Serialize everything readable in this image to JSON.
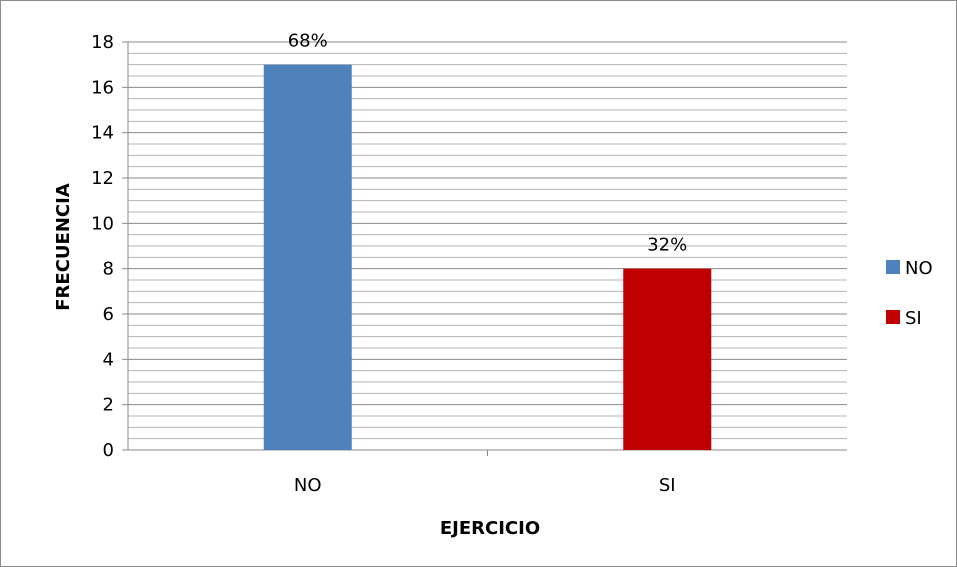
{
  "chart_data": {
    "type": "bar",
    "categories": [
      "NO",
      "SI"
    ],
    "values": [
      17,
      8
    ],
    "data_labels": [
      "68%",
      "32%"
    ],
    "colors": [
      "#4f81bd",
      "#c00000"
    ],
    "xlabel": "EJERCICIO",
    "ylabel": "FRECUENCIA",
    "ylim": [
      0,
      18
    ],
    "ytick_step": 2,
    "minor_grid_step": 0.5,
    "grid": true,
    "legend": {
      "position": "right",
      "entries": [
        {
          "label": "NO",
          "color": "#4f81bd"
        },
        {
          "label": "SI",
          "color": "#c00000"
        }
      ]
    }
  }
}
